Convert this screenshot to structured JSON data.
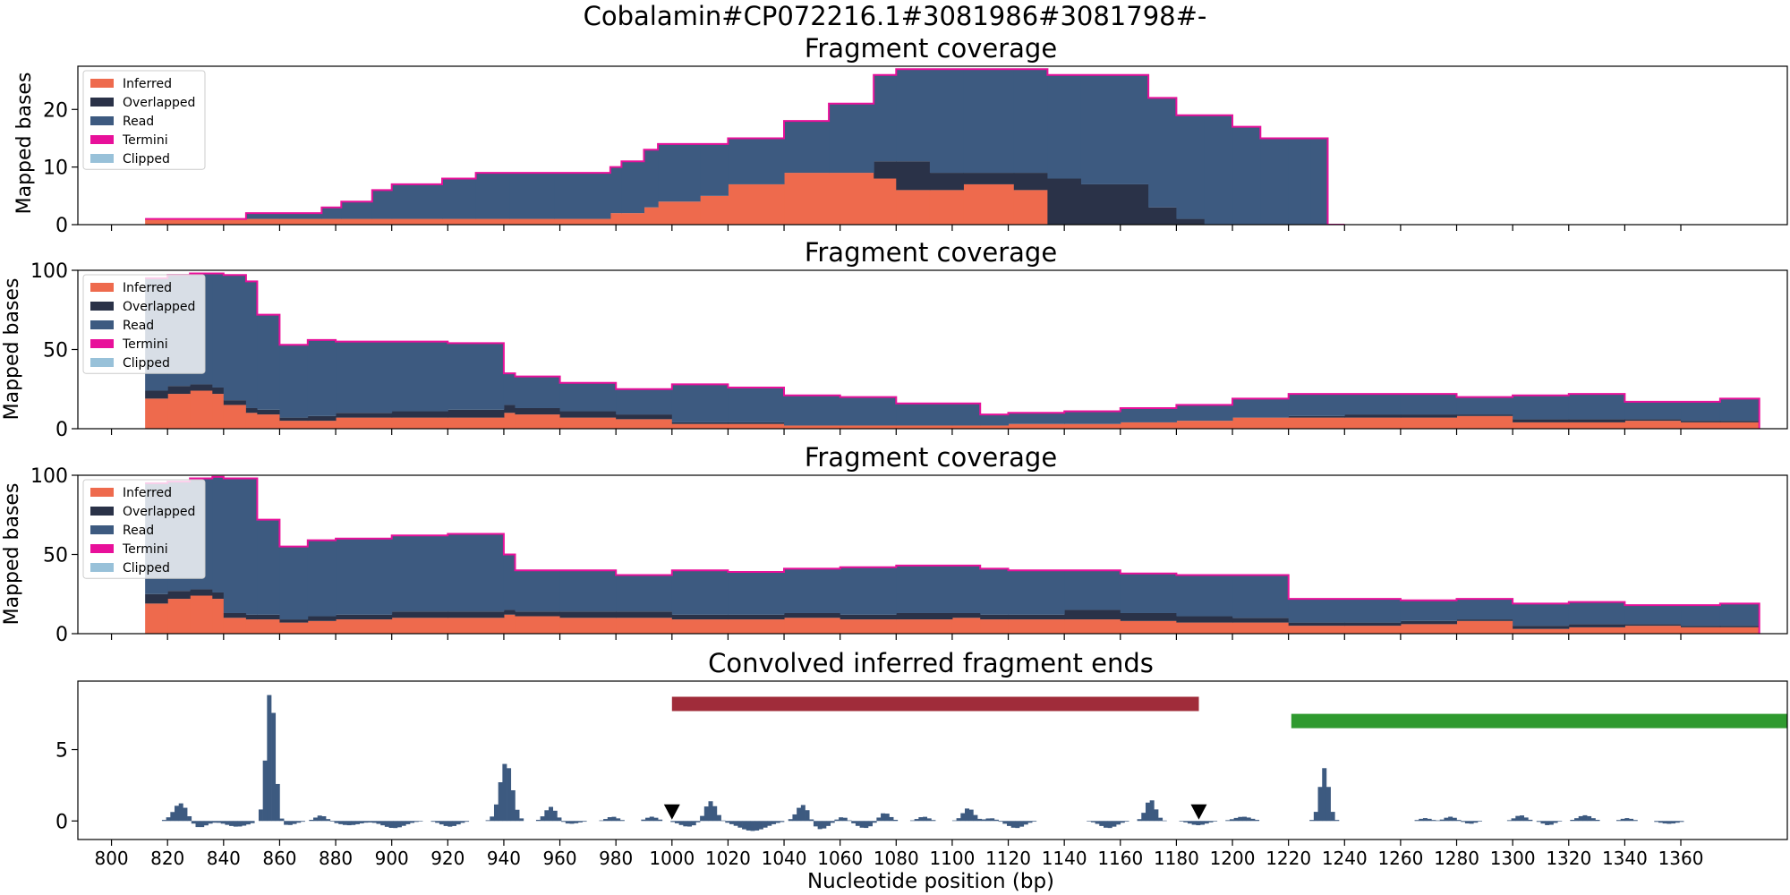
{
  "suptitle": "Cobalamin#CP072216.1#3081986#3081798#-",
  "xlabel": "Nucleotide position (bp)",
  "colors": {
    "inferred": "#ee6a4d",
    "overlapped": "#2a3248",
    "read": "#3d5a80",
    "termini": "#e8109a",
    "clipped": "#98c1d9",
    "red_bar": "#a02c3a",
    "green_bar": "#2f9a2f",
    "marker": "#000000"
  },
  "legend_labels": [
    "Inferred",
    "Overlapped",
    "Read",
    "Termini",
    "Clipped"
  ],
  "x_ticks": [
    800,
    820,
    840,
    860,
    880,
    900,
    920,
    940,
    960,
    980,
    1000,
    1020,
    1040,
    1060,
    1080,
    1100,
    1120,
    1140,
    1160,
    1180,
    1200,
    1220,
    1240,
    1260,
    1280,
    1300,
    1320,
    1340,
    1360
  ],
  "chart_data": [
    {
      "type": "area",
      "title": "Fragment coverage",
      "ylabel": "Mapped bases",
      "xlim": [
        788,
        1398
      ],
      "ylim": [
        0,
        27.5
      ],
      "y_ticks": [
        0,
        10,
        20
      ],
      "legend": "top-left",
      "x": [
        812,
        848,
        860,
        875,
        882,
        893,
        900,
        918,
        930,
        942,
        958,
        978,
        982,
        990,
        995,
        1010,
        1020,
        1040,
        1056,
        1072,
        1080,
        1092,
        1104,
        1122,
        1134,
        1146,
        1170,
        1180,
        1190,
        1200,
        1210,
        1220,
        1228,
        1234
      ],
      "series": [
        {
          "name": "Inferred",
          "values": [
            1,
            1,
            1,
            1,
            1,
            1,
            1,
            1,
            1,
            1,
            1,
            2,
            2,
            3,
            4,
            5,
            7,
            9,
            9,
            8,
            6,
            6,
            7,
            6,
            0,
            0,
            0,
            0,
            0,
            0,
            0,
            0,
            0,
            0
          ]
        },
        {
          "name": "Overlapped",
          "values": [
            0,
            0,
            0,
            0,
            0,
            0,
            0,
            0,
            0,
            0,
            0,
            0,
            0,
            0,
            0,
            0,
            0,
            0,
            0,
            3,
            5,
            3,
            2,
            3,
            8,
            7,
            3,
            1,
            0,
            0,
            0,
            0,
            0,
            0
          ]
        },
        {
          "name": "Read",
          "values": [
            0,
            1,
            1,
            2,
            3,
            5,
            6,
            7,
            8,
            8,
            8,
            8,
            9,
            10,
            10,
            9,
            8,
            9,
            12,
            15,
            16,
            18,
            18,
            18,
            18,
            19,
            19,
            18,
            19,
            17,
            15,
            15,
            15,
            0
          ]
        }
      ]
    },
    {
      "type": "area",
      "title": "Fragment coverage",
      "ylabel": "Mapped bases",
      "xlim": [
        788,
        1398
      ],
      "ylim": [
        0,
        100
      ],
      "y_ticks": [
        0,
        50,
        100
      ],
      "legend": "top-left",
      "x": [
        812,
        820,
        828,
        836,
        840,
        848,
        852,
        860,
        870,
        880,
        900,
        920,
        940,
        944,
        960,
        980,
        1000,
        1020,
        1040,
        1060,
        1080,
        1100,
        1110,
        1120,
        1140,
        1160,
        1180,
        1200,
        1220,
        1240,
        1260,
        1280,
        1300,
        1320,
        1340,
        1360,
        1374
      ],
      "series": [
        {
          "name": "Inferred",
          "values": [
            19,
            22,
            24,
            22,
            15,
            10,
            9,
            5,
            5,
            7,
            7,
            7,
            10,
            9,
            7,
            6,
            3,
            3,
            2,
            2,
            2,
            2,
            2,
            3,
            3,
            4,
            5,
            7,
            7,
            7,
            7,
            8,
            4,
            4,
            5,
            4,
            4
          ]
        },
        {
          "name": "Overlapped",
          "values": [
            5,
            5,
            4,
            4,
            3,
            3,
            3,
            2,
            3,
            3,
            4,
            5,
            5,
            4,
            4,
            3,
            1,
            1,
            0,
            0,
            0,
            0,
            0,
            0,
            0,
            0,
            0,
            0,
            1,
            2,
            2,
            1,
            2,
            2,
            1,
            1,
            1
          ]
        },
        {
          "name": "Read",
          "values": [
            71,
            70,
            70,
            72,
            79,
            80,
            60,
            46,
            48,
            45,
            44,
            42,
            20,
            20,
            18,
            16,
            24,
            22,
            19,
            18,
            14,
            14,
            7,
            7,
            8,
            9,
            10,
            12,
            14,
            13,
            13,
            11,
            15,
            16,
            11,
            12,
            14
          ]
        }
      ]
    },
    {
      "type": "area",
      "title": "Fragment coverage",
      "ylabel": "Mapped bases",
      "xlim": [
        788,
        1398
      ],
      "ylim": [
        0,
        100
      ],
      "y_ticks": [
        0,
        50,
        100
      ],
      "legend": "top-left",
      "x": [
        812,
        820,
        828,
        836,
        840,
        848,
        852,
        860,
        870,
        880,
        900,
        920,
        940,
        944,
        960,
        980,
        1000,
        1020,
        1040,
        1060,
        1080,
        1100,
        1110,
        1120,
        1140,
        1160,
        1180,
        1200,
        1220,
        1240,
        1260,
        1280,
        1300,
        1320,
        1340,
        1360,
        1374
      ],
      "series": [
        {
          "name": "Inferred",
          "values": [
            19,
            22,
            24,
            22,
            10,
            9,
            9,
            7,
            8,
            9,
            10,
            10,
            12,
            11,
            10,
            10,
            9,
            9,
            10,
            9,
            9,
            10,
            9,
            9,
            9,
            8,
            7,
            7,
            5,
            5,
            6,
            8,
            3,
            4,
            5,
            4,
            4
          ]
        },
        {
          "name": "Overlapped",
          "values": [
            6,
            5,
            4,
            4,
            3,
            3,
            3,
            2,
            3,
            3,
            4,
            4,
            3,
            3,
            4,
            4,
            3,
            3,
            3,
            3,
            4,
            3,
            3,
            3,
            6,
            5,
            4,
            3,
            2,
            2,
            2,
            1,
            2,
            2,
            1,
            1,
            1
          ]
        },
        {
          "name": "Read",
          "values": [
            70,
            69,
            70,
            73,
            85,
            86,
            60,
            46,
            48,
            48,
            48,
            49,
            35,
            26,
            26,
            23,
            28,
            27,
            28,
            30,
            30,
            30,
            29,
            28,
            25,
            25,
            26,
            27,
            15,
            15,
            13,
            13,
            14,
            14,
            12,
            13,
            14
          ]
        }
      ]
    },
    {
      "type": "bar",
      "title": "Convolved inferred fragment ends",
      "ylabel": "",
      "xlim": [
        788,
        1398
      ],
      "ylim": [
        -1.3,
        9.8
      ],
      "y_ticks": [
        0,
        5
      ],
      "peaks": [
        {
          "x": 824,
          "height": 1.3,
          "width": 2.5
        },
        {
          "x": 856,
          "height": 9.3,
          "width": 1.6
        },
        {
          "x": 874,
          "height": 0.4,
          "width": 2
        },
        {
          "x": 940,
          "height": 4.1,
          "width": 2.2
        },
        {
          "x": 956,
          "height": 1.0,
          "width": 2
        },
        {
          "x": 978,
          "height": 0.3,
          "width": 2
        },
        {
          "x": 992,
          "height": 0.3,
          "width": 2
        },
        {
          "x": 1013,
          "height": 1.4,
          "width": 2
        },
        {
          "x": 1046,
          "height": 1.2,
          "width": 2.2
        },
        {
          "x": 1060,
          "height": 0.3,
          "width": 2
        },
        {
          "x": 1075,
          "height": 0.6,
          "width": 2
        },
        {
          "x": 1089,
          "height": 0.3,
          "width": 2
        },
        {
          "x": 1105,
          "height": 0.9,
          "width": 2
        },
        {
          "x": 1113,
          "height": 0.2,
          "width": 2
        },
        {
          "x": 1170,
          "height": 1.5,
          "width": 1.8
        },
        {
          "x": 1203,
          "height": 0.3,
          "width": 3
        },
        {
          "x": 1232,
          "height": 3.7,
          "width": 1.6
        },
        {
          "x": 1268,
          "height": 0.2,
          "width": 2
        },
        {
          "x": 1277,
          "height": 0.3,
          "width": 2
        },
        {
          "x": 1302,
          "height": 0.4,
          "width": 2
        },
        {
          "x": 1325,
          "height": 0.4,
          "width": 2.5
        },
        {
          "x": 1340,
          "height": 0.2,
          "width": 2
        }
      ],
      "dips": [
        {
          "x": 830,
          "depth": 0.5,
          "width": 3
        },
        {
          "x": 844,
          "depth": 0.4,
          "width": 4
        },
        {
          "x": 862,
          "depth": 0.3,
          "width": 3
        },
        {
          "x": 884,
          "depth": 0.3,
          "width": 4
        },
        {
          "x": 900,
          "depth": 0.5,
          "width": 4
        },
        {
          "x": 920,
          "depth": 0.4,
          "width": 3
        },
        {
          "x": 963,
          "depth": 0.2,
          "width": 3
        },
        {
          "x": 1005,
          "depth": 0.4,
          "width": 3
        },
        {
          "x": 1028,
          "depth": 0.7,
          "width": 5
        },
        {
          "x": 1052,
          "depth": 0.6,
          "width": 3
        },
        {
          "x": 1068,
          "depth": 0.5,
          "width": 3
        },
        {
          "x": 1122,
          "depth": 0.5,
          "width": 3
        },
        {
          "x": 1155,
          "depth": 0.5,
          "width": 3
        },
        {
          "x": 1187,
          "depth": 0.3,
          "width": 3
        },
        {
          "x": 1284,
          "depth": 0.2,
          "width": 2
        },
        {
          "x": 1312,
          "depth": 0.3,
          "width": 2
        },
        {
          "x": 1355,
          "depth": 0.2,
          "width": 3
        }
      ],
      "markers": [
        {
          "x": 1000,
          "y": 0.6
        },
        {
          "x": 1188,
          "y": 0.6
        }
      ],
      "bars": [
        {
          "x_start": 1000,
          "x_end": 1188,
          "y": 8.2,
          "color_key": "red_bar"
        },
        {
          "x_start": 1221,
          "x_end": 1398,
          "y": 7.0,
          "color_key": "green_bar"
        }
      ]
    }
  ]
}
